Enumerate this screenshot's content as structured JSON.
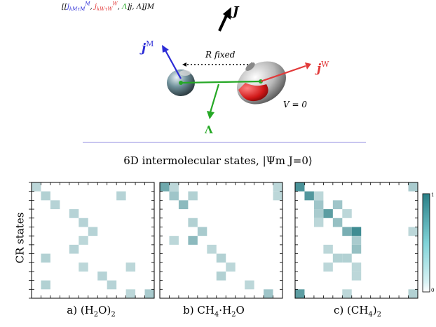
{
  "figure": {
    "top_label": {
      "open": "[[",
      "jM": "j",
      "jM_sub": "kMτM",
      "jM_sup": "M",
      "jW": "j",
      "jW_sub": "kWτW",
      "jW_sup": "W",
      "lambda": "Λ",
      "close": "]j, Λ]JM"
    },
    "J_label": "J",
    "jM_label": "j",
    "jM_sup": "M",
    "jW_label": "j",
    "jW_sup": "W",
    "lambda_label": "Λ",
    "R_label": "R fixed",
    "V_label": "V = 0",
    "section_title": "6D intermolecular states, |Ψm J=0⟩",
    "y_axis_label": "CR states",
    "colorbar_ticks": [
      "1",
      "0"
    ],
    "panels": [
      {
        "label": "a) (H2O)2",
        "pre": "a) (H",
        "sub1": "2",
        "mid": "O)",
        "sub2": "2"
      },
      {
        "label": "b) CH4·H2O",
        "pre": "b) CH",
        "sub1": "4",
        "mid": "·H",
        "sub2": "2",
        "post": "O"
      },
      {
        "label": "c) (CH4)2",
        "pre": "c) (CH",
        "sub1": "4",
        "mid": ")",
        "sub2": "2"
      }
    ],
    "colors": {
      "jM": "#2b2bd6",
      "jW": "#e23a3a",
      "lambda": "#26a826",
      "divider": "#c9c6f0",
      "heat_low": "#ffffff",
      "heat_high": "#2a7f86"
    }
  },
  "chart_data": [
    {
      "type": "heatmap",
      "title": "a) (H2O)2",
      "ylabel": "CR states",
      "grid_size": 13,
      "cells": [
        [
          0,
          0,
          0.15
        ],
        [
          1,
          1,
          0.2
        ],
        [
          2,
          2,
          0.18
        ],
        [
          3,
          4,
          0.18
        ],
        [
          4,
          5,
          0.18
        ],
        [
          5,
          6,
          0.18
        ],
        [
          6,
          5,
          0.15
        ],
        [
          7,
          4,
          0.18
        ],
        [
          8,
          1,
          0.2
        ],
        [
          9,
          5,
          0.15
        ],
        [
          10,
          7,
          0.18
        ],
        [
          11,
          1,
          0.2
        ],
        [
          11,
          8,
          0.18
        ],
        [
          12,
          10,
          0.15
        ],
        [
          12,
          12,
          0.25
        ],
        [
          1,
          9,
          0.18
        ],
        [
          9,
          10,
          0.15
        ],
        [
          1,
          0,
          0.0
        ]
      ]
    },
    {
      "type": "heatmap",
      "title": "b) CH4·H2O",
      "grid_size": 13,
      "cells": [
        [
          0,
          0,
          0.55
        ],
        [
          1,
          1,
          0.3
        ],
        [
          2,
          2,
          0.4
        ],
        [
          1,
          3,
          0.2
        ],
        [
          4,
          3,
          0.2
        ],
        [
          5,
          4,
          0.25
        ],
        [
          6,
          3,
          0.4
        ],
        [
          7,
          5,
          0.15
        ],
        [
          8,
          6,
          0.2
        ],
        [
          9,
          7,
          0.15
        ],
        [
          10,
          6,
          0.2
        ],
        [
          11,
          9,
          0.15
        ],
        [
          12,
          11,
          0.3
        ],
        [
          1,
          12,
          0.15
        ],
        [
          0,
          12,
          0.15
        ],
        [
          0,
          1,
          0.15
        ],
        [
          6,
          1,
          0.15
        ]
      ]
    },
    {
      "type": "heatmap",
      "title": "c) (CH4)2",
      "grid_size": 13,
      "cells": [
        [
          0,
          0,
          0.75
        ],
        [
          1,
          1,
          0.7
        ],
        [
          2,
          2,
          0.3
        ],
        [
          3,
          3,
          0.65
        ],
        [
          4,
          4,
          0.35
        ],
        [
          5,
          5,
          0.5
        ],
        [
          5,
          6,
          0.8
        ],
        [
          6,
          6,
          0.25
        ],
        [
          7,
          6,
          0.35
        ],
        [
          8,
          5,
          0.2
        ],
        [
          9,
          6,
          0.15
        ],
        [
          10,
          6,
          0.15
        ],
        [
          3,
          2,
          0.25
        ],
        [
          4,
          2,
          0.15
        ],
        [
          2,
          4,
          0.3
        ],
        [
          3,
          5,
          0.15
        ],
        [
          12,
          0,
          0.65
        ],
        [
          0,
          12,
          0.25
        ],
        [
          1,
          2,
          0.15
        ],
        [
          12,
          12,
          0.2
        ],
        [
          5,
          12,
          0.15
        ],
        [
          12,
          5,
          0.15
        ],
        [
          7,
          3,
          0.15
        ],
        [
          8,
          4,
          0.2
        ],
        [
          9,
          3,
          0.15
        ]
      ]
    }
  ]
}
